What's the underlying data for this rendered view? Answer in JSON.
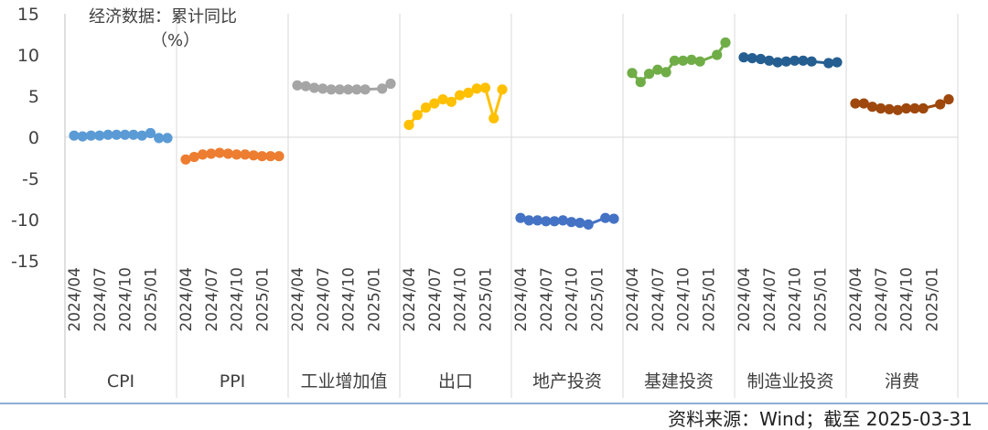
{
  "chart_data": {
    "type": "line",
    "title": "经济数据：累计同比",
    "unit": "（%）",
    "source": "资料来源：Wind；截至  2025-03-31",
    "ylim": [
      -15,
      15
    ],
    "yticks": [
      15,
      10,
      5,
      0,
      -5,
      -10,
      -15
    ],
    "ytick_labels": [
      "15",
      "10",
      "5",
      "0",
      "-5",
      "-10",
      "-15"
    ],
    "x_months": [
      "2024/04",
      "2024/05",
      "2024/06",
      "2024/07",
      "2024/08",
      "2024/09",
      "2024/10",
      "2024/11",
      "2024/12",
      "2025/01",
      "2025/02",
      "2025/03"
    ],
    "x_tick_labels": [
      "2024/04",
      "2024/07",
      "2024/10",
      "2025/01"
    ],
    "x_tick_index": [
      0,
      3,
      6,
      9
    ],
    "grid": false,
    "series": [
      {
        "name": "CPI",
        "color": "#5B9BD5",
        "values": [
          0.2,
          0.1,
          0.2,
          0.2,
          0.3,
          0.3,
          0.3,
          0.3,
          0.2,
          0.5,
          -0.1,
          -0.1
        ]
      },
      {
        "name": "PPI",
        "color": "#ED7D31",
        "values": [
          -2.7,
          -2.4,
          -2.1,
          -2.0,
          -1.9,
          -2.0,
          -2.1,
          -2.1,
          -2.2,
          -2.3,
          -2.3,
          -2.3
        ]
      },
      {
        "name": "工业增加值",
        "color": "#A5A5A5",
        "values": [
          6.3,
          6.2,
          6.0,
          5.9,
          5.8,
          5.8,
          5.8,
          5.8,
          5.8,
          null,
          5.9,
          6.5
        ]
      },
      {
        "name": "出口",
        "color": "#FFC000",
        "values": [
          1.5,
          2.7,
          3.6,
          4.1,
          4.6,
          4.3,
          5.1,
          5.4,
          5.9,
          6.0,
          2.3,
          5.8
        ]
      },
      {
        "name": "地产投资",
        "color": "#4472C4",
        "values": [
          -9.8,
          -10.1,
          -10.1,
          -10.2,
          -10.2,
          -10.1,
          -10.3,
          -10.4,
          -10.6,
          null,
          -9.8,
          -9.9
        ]
      },
      {
        "name": "基建投资",
        "color": "#70AD47",
        "values": [
          7.8,
          6.7,
          7.7,
          8.2,
          7.9,
          9.3,
          9.3,
          9.4,
          9.2,
          null,
          10.0,
          11.5
        ]
      },
      {
        "name": "制造业投资",
        "color": "#255E91",
        "values": [
          9.7,
          9.6,
          9.5,
          9.3,
          9.1,
          9.2,
          9.3,
          9.3,
          9.2,
          null,
          9.0,
          9.1
        ]
      },
      {
        "name": "消费",
        "color": "#9E480E",
        "values": [
          4.1,
          4.1,
          3.7,
          3.5,
          3.4,
          3.3,
          3.5,
          3.5,
          3.5,
          null,
          4.0,
          4.6
        ]
      }
    ]
  }
}
